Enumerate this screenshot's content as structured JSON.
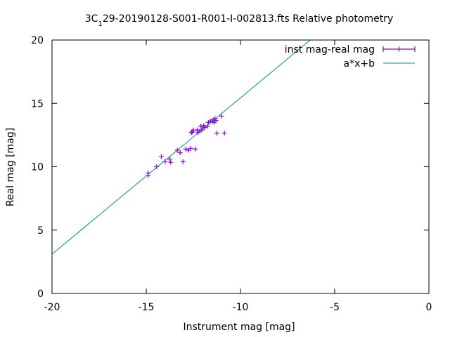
{
  "chart_data": {
    "type": "scatter",
    "title_main": "3C",
    "title_sub": "1",
    "title_rest": "29-20190128-S001-R001-I-002813.fts Relative photometry",
    "xlabel": "Instrument mag [mag]",
    "ylabel": "Real mag [mag]",
    "xlim": [
      -20,
      0
    ],
    "ylim": [
      0,
      20
    ],
    "xticks": [
      -20,
      -15,
      -10,
      -5,
      0
    ],
    "yticks": [
      0,
      5,
      10,
      15,
      20
    ],
    "xtick_labels": [
      "-20",
      "-15",
      "-10",
      "-5",
      "0"
    ],
    "ytick_labels": [
      "0",
      "5",
      "10",
      "15",
      "20"
    ],
    "grid": false,
    "legend_position": "top-right",
    "series": [
      {
        "name": "inst mag-real mag",
        "kind": "points",
        "color": "#9400d3",
        "points": [
          [
            -14.9,
            9.5
          ],
          [
            -14.9,
            9.3
          ],
          [
            -14.45,
            10.0
          ],
          [
            -14.2,
            10.8
          ],
          [
            -14.0,
            10.4
          ],
          [
            -13.75,
            10.6
          ],
          [
            -13.7,
            10.35
          ],
          [
            -13.35,
            11.3
          ],
          [
            -13.2,
            11.1
          ],
          [
            -13.05,
            10.4
          ],
          [
            -12.9,
            11.4
          ],
          [
            -12.75,
            11.3
          ],
          [
            -12.65,
            11.45
          ],
          [
            -12.4,
            11.4
          ],
          [
            -12.6,
            12.7
          ],
          [
            -12.5,
            12.9
          ],
          [
            -12.3,
            12.9
          ],
          [
            -12.25,
            12.7
          ],
          [
            -12.15,
            12.8
          ],
          [
            -12.1,
            13.2
          ],
          [
            -12.05,
            12.9
          ],
          [
            -12.0,
            13.05
          ],
          [
            -11.95,
            13.25
          ],
          [
            -11.9,
            13.1
          ],
          [
            -11.75,
            13.2
          ],
          [
            -11.7,
            13.5
          ],
          [
            -11.6,
            13.6
          ],
          [
            -11.5,
            13.55
          ],
          [
            -11.45,
            13.7
          ],
          [
            -11.4,
            13.5
          ],
          [
            -11.35,
            13.8
          ],
          [
            -11.3,
            13.65
          ],
          [
            -11.25,
            12.65
          ],
          [
            -11.0,
            14.0
          ],
          [
            -10.85,
            12.65
          ],
          [
            -12.55,
            12.75
          ]
        ]
      },
      {
        "name": "a*x+b",
        "kind": "line",
        "color": "#008b8b",
        "x": [
          -20,
          -6.3
        ],
        "y": [
          3.1,
          20.0
        ]
      }
    ]
  }
}
